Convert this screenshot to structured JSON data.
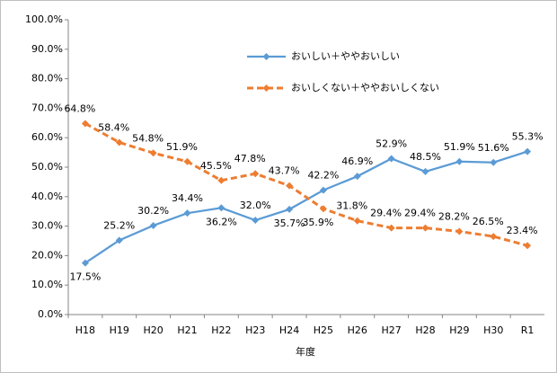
{
  "chart_data": {
    "type": "line",
    "x_label": "年度",
    "categories": [
      "H18",
      "H19",
      "H20",
      "H21",
      "H22",
      "H23",
      "H24",
      "H25",
      "H26",
      "H27",
      "H28",
      "H29",
      "H30",
      "R1"
    ],
    "series": [
      {
        "name": "おいしい＋ややおいしい",
        "color": "#5b9bd5",
        "line_style": "solid",
        "values": [
          17.5,
          25.2,
          30.2,
          34.4,
          36.2,
          32.0,
          35.7,
          42.2,
          46.9,
          52.9,
          48.5,
          51.9,
          51.6,
          55.3
        ],
        "value_labels": [
          "17.5%",
          "25.2%",
          "30.2%",
          "34.4%",
          "36.2%",
          "32.0%",
          "35.7%",
          "42.2%",
          "46.9%",
          "52.9%",
          "48.5%",
          "51.9%",
          "51.6%",
          "55.3%"
        ]
      },
      {
        "name": "おいしくない＋ややおいしくない",
        "color": "#ed7d31",
        "line_style": "dashed",
        "values": [
          64.8,
          58.4,
          54.8,
          51.9,
          45.5,
          47.8,
          43.7,
          35.9,
          31.8,
          29.4,
          29.4,
          28.2,
          26.5,
          23.4
        ],
        "value_labels": [
          "64.8%",
          "58.4%",
          "54.8%",
          "51.9%",
          "45.5%",
          "47.8%",
          "43.7%",
          "35.9%",
          "31.8%",
          "29.4%",
          "29.4%",
          "28.2%",
          "26.5%",
          "23.4%"
        ]
      }
    ],
    "ylim": [
      0,
      100
    ],
    "yticks": [
      {
        "value": 0,
        "label": "0.0%"
      },
      {
        "value": 10,
        "label": "10.0%"
      },
      {
        "value": 20,
        "label": "20.0%"
      },
      {
        "value": 30,
        "label": "30.0%"
      },
      {
        "value": 40,
        "label": "40.0%"
      },
      {
        "value": 50,
        "label": "50.0%"
      },
      {
        "value": 60,
        "label": "60.0%"
      },
      {
        "value": 70,
        "label": "70.0%"
      },
      {
        "value": 80,
        "label": "80.0%"
      },
      {
        "value": 90,
        "label": "90.0%"
      },
      {
        "value": 100,
        "label": "100.0%"
      }
    ],
    "grid": false,
    "legend": "top-right"
  }
}
